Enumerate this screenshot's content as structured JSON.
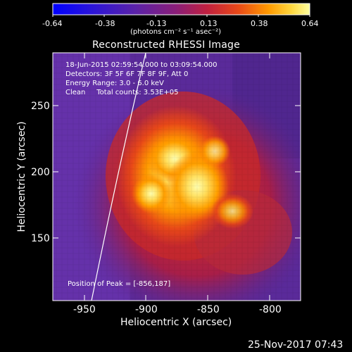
{
  "colorbar": {
    "ticks": [
      "-0.64",
      "-0.38",
      "-0.13",
      "0.13",
      "0.38",
      "0.64"
    ],
    "unit_label": "(photons cm⁻² s⁻¹ asec⁻²)",
    "colors": [
      "#0000ff",
      "#3a1ad0",
      "#6a2a9a",
      "#a02068",
      "#d03030",
      "#f06010",
      "#ffa000",
      "#ffff80"
    ]
  },
  "plot": {
    "title": "Reconstructed RHESSI Image",
    "info_lines": [
      "18-Jun-2015 02:59:54.000 to 03:09:54.000",
      "Detectors: 3F 5F 6F 7F 8F 9F, Att 0",
      "Energy Range: 3.0 - 6.0 keV",
      "Clean     Total counts: 3.53E+05"
    ],
    "peak_text": "Position of Peak = [-856,187]",
    "xlabel": "Heliocentric X (arcsec)",
    "ylabel": "Heliocentric Y (arcsec)",
    "xticks": [
      "-950",
      "-900",
      "-850",
      "-800"
    ],
    "yticks": [
      "150",
      "200",
      "250"
    ],
    "footer_date": "25-Nov-2017 07:43"
  }
}
